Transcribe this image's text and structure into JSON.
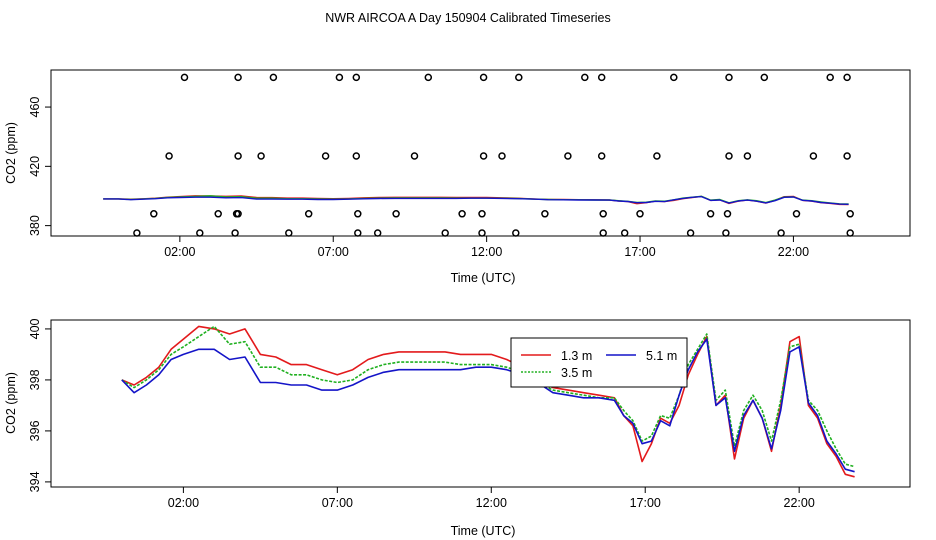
{
  "title": "NWR AIRCOA A  Day 150904  Calibrated Timeseries",
  "chart_data": [
    {
      "type": "scatter",
      "name": "top-panel",
      "xlabel": "Time (UTC)",
      "ylabel": "CO2 (ppm)",
      "x_unit": "hours since 00:00 UTC",
      "xlim": [
        -2.2,
        25.8
      ],
      "ylim": [
        373,
        485
      ],
      "xticks": [
        2,
        7,
        12,
        17,
        22
      ],
      "xtick_labels": [
        "02:00",
        "07:00",
        "12:00",
        "17:00",
        "22:00"
      ],
      "yticks": [
        380,
        420,
        460
      ],
      "ytick_labels": [
        "380",
        "420",
        "460"
      ],
      "grid": false,
      "circles": {
        "level_480": [
          2.15,
          3.9,
          5.05,
          7.2,
          7.75,
          10.1,
          11.9,
          13.05,
          15.2,
          15.75,
          18.1,
          19.9,
          21.05,
          23.2,
          23.75
        ],
        "level_427": [
          1.65,
          3.9,
          4.65,
          6.75,
          7.75,
          9.65,
          11.9,
          12.5,
          14.65,
          15.75,
          17.55,
          19.9,
          20.5,
          22.65,
          23.75
        ],
        "level_388": [
          1.15,
          3.25,
          3.85,
          3.9,
          6.2,
          7.8,
          9.05,
          11.2,
          11.85,
          13.9,
          15.8,
          17.0,
          19.3,
          19.85,
          22.1,
          23.85
        ],
        "level_375": [
          0.6,
          2.65,
          3.8,
          5.55,
          7.8,
          8.45,
          10.65,
          11.85,
          12.95,
          15.8,
          16.5,
          18.65,
          19.8,
          21.6,
          23.85
        ]
      },
      "series": [
        {
          "name": "1.3 m",
          "color": "#e31a1c"
        },
        {
          "name": "3.5 m",
          "color": "#20b020"
        },
        {
          "name": "5.1 m",
          "color": "#1414c8"
        }
      ]
    },
    {
      "type": "line",
      "name": "bottom-panel",
      "xlabel": "Time (UTC)",
      "ylabel": "CO2 (ppm)",
      "x_unit": "hours since 00:00 UTC",
      "xlim": [
        -2.3,
        25.6
      ],
      "ylim": [
        393.8,
        400.35
      ],
      "xticks": [
        2,
        7,
        12,
        17,
        22
      ],
      "xtick_labels": [
        "02:00",
        "07:00",
        "12:00",
        "17:00",
        "22:00"
      ],
      "yticks": [
        394,
        396,
        398,
        400
      ],
      "ytick_labels": [
        "394",
        "396",
        "398",
        "400"
      ],
      "grid": false,
      "legend": {
        "position": "top-right",
        "items": [
          "1.3 m",
          "5.1 m",
          "3.5 m"
        ]
      },
      "x": [
        0.0,
        0.4,
        0.8,
        1.2,
        1.6,
        2.0,
        2.5,
        3.0,
        3.5,
        4.0,
        4.5,
        5.0,
        5.5,
        6.0,
        6.5,
        7.0,
        7.5,
        8.0,
        8.5,
        9.0,
        9.5,
        10.0,
        10.5,
        11.0,
        11.5,
        12.0,
        12.5,
        13.0,
        13.5,
        14.0,
        14.5,
        15.0,
        15.5,
        16.0,
        16.3,
        16.6,
        16.9,
        17.2,
        17.5,
        17.8,
        18.1,
        18.4,
        18.7,
        19.0,
        19.3,
        19.6,
        19.9,
        20.2,
        20.5,
        20.8,
        21.1,
        21.4,
        21.7,
        22.0,
        22.3,
        22.6,
        22.9,
        23.2,
        23.5,
        23.8
      ],
      "series": [
        {
          "name": "1.3 m",
          "color": "#e31a1c",
          "values": [
            398.0,
            397.8,
            398.1,
            398.5,
            399.2,
            399.6,
            400.1,
            400.0,
            399.8,
            400.0,
            399.0,
            398.9,
            398.6,
            398.6,
            398.4,
            398.2,
            398.4,
            398.8,
            399.0,
            399.1,
            399.1,
            399.1,
            399.1,
            399.0,
            399.0,
            399.0,
            398.8,
            398.5,
            398.0,
            397.7,
            397.6,
            397.5,
            397.4,
            397.3,
            396.6,
            396.2,
            394.8,
            395.5,
            396.5,
            396.3,
            397.0,
            398.2,
            399.0,
            399.7,
            397.0,
            397.4,
            394.9,
            396.5,
            397.2,
            396.5,
            395.2,
            397.0,
            399.5,
            399.7,
            397.0,
            396.5,
            395.5,
            395.0,
            394.3,
            394.2
          ]
        },
        {
          "name": "3.5 m",
          "color": "#20b020",
          "values": [
            398.0,
            397.7,
            398.0,
            398.4,
            399.0,
            399.3,
            399.7,
            400.1,
            399.4,
            399.5,
            398.5,
            398.5,
            398.2,
            398.2,
            398.0,
            397.9,
            398.0,
            398.4,
            398.6,
            398.7,
            398.7,
            398.7,
            398.7,
            398.6,
            398.6,
            398.6,
            398.5,
            398.3,
            397.9,
            397.6,
            397.5,
            397.4,
            397.3,
            397.3,
            396.8,
            396.4,
            395.6,
            395.8,
            396.6,
            396.5,
            397.4,
            398.6,
            399.2,
            399.8,
            397.2,
            397.6,
            395.4,
            396.8,
            397.4,
            396.8,
            395.6,
            397.2,
            399.3,
            399.4,
            397.2,
            396.8,
            396.0,
            395.3,
            394.7,
            394.6
          ]
        },
        {
          "name": "5.1 m",
          "color": "#1414c8",
          "values": [
            398.0,
            397.5,
            397.8,
            398.2,
            398.8,
            399.0,
            399.2,
            399.2,
            398.8,
            398.9,
            397.9,
            397.9,
            397.8,
            397.8,
            397.6,
            397.6,
            397.8,
            398.1,
            398.3,
            398.4,
            398.4,
            398.4,
            398.4,
            398.4,
            398.5,
            398.5,
            398.4,
            398.2,
            397.9,
            397.5,
            397.4,
            397.3,
            397.3,
            397.2,
            396.6,
            396.3,
            395.5,
            395.6,
            396.4,
            396.2,
            397.4,
            398.4,
            399.1,
            399.6,
            397.0,
            397.3,
            395.2,
            396.6,
            397.2,
            396.5,
            395.3,
            396.8,
            399.1,
            399.3,
            397.1,
            396.6,
            395.6,
            395.1,
            394.5,
            394.4
          ]
        }
      ]
    }
  ]
}
